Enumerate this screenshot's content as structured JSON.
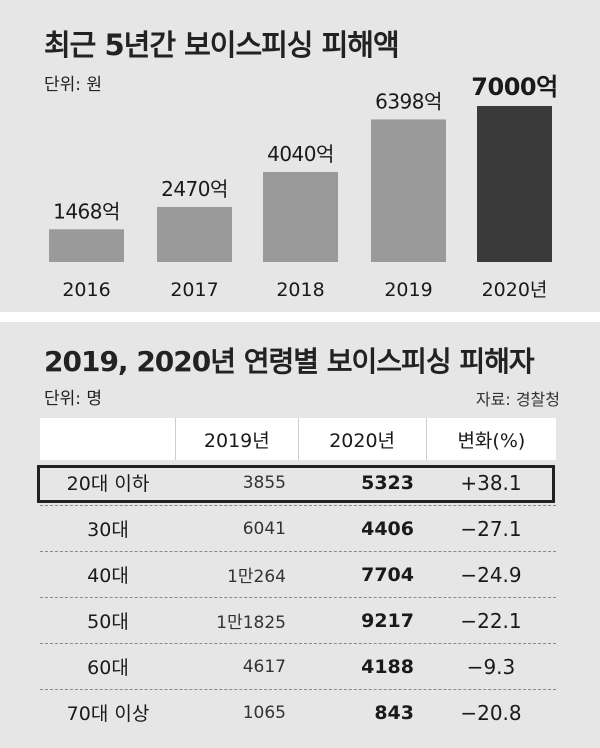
{
  "chart_data": [
    {
      "type": "bar",
      "title": "최근 5년간 보이스피싱 피해액",
      "unit_label": "단위: 원",
      "categories": [
        "2016",
        "2017",
        "2018",
        "2019",
        "2020년"
      ],
      "values": [
        1468,
        2470,
        4040,
        6398,
        7000
      ],
      "data_labels": [
        "1468억",
        "2470억",
        "4040억",
        "6398억",
        "7000억"
      ],
      "colors": [
        "#9a9a9a",
        "#9a9a9a",
        "#9a9a9a",
        "#9a9a9a",
        "#3a3a3a"
      ],
      "ylim": [
        0,
        7000
      ]
    },
    {
      "type": "table",
      "title": "2019, 2020년 연령별 보이스피싱 피해자",
      "unit_label": "단위: 명",
      "source": "자료: 경찰청",
      "columns": [
        "",
        "2019년",
        "2020년",
        "변화(%)"
      ],
      "rows": [
        {
          "age": "20대 이하",
          "y2019": "3855",
          "y2020": "5323",
          "change": "+38.1"
        },
        {
          "age": "30대",
          "y2019": "6041",
          "y2020": "4406",
          "change": "−27.1"
        },
        {
          "age": "40대",
          "y2019": "1만264",
          "y2020": "7704",
          "change": "−24.9"
        },
        {
          "age": "50대",
          "y2019": "1만1825",
          "y2020": "9217",
          "change": "−22.1"
        },
        {
          "age": "60대",
          "y2019": "4617",
          "y2020": "4188",
          "change": "−9.3"
        },
        {
          "age": "70대 이상",
          "y2019": "1065",
          "y2020": "843",
          "change": "−20.8"
        }
      ],
      "highlighted_row": 0
    }
  ]
}
